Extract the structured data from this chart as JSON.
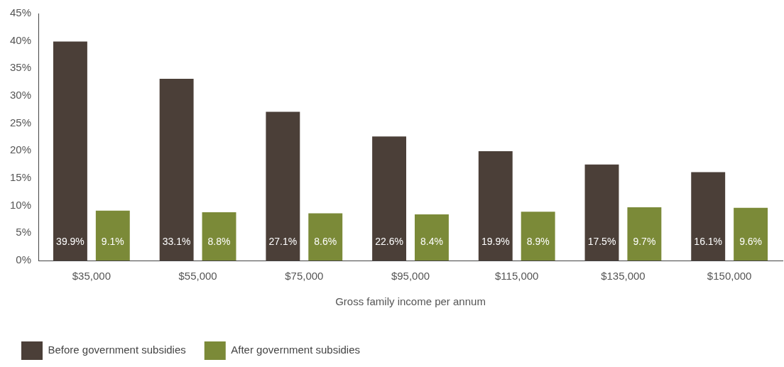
{
  "chart_data": {
    "type": "bar",
    "xlabel": "Gross family income per annum",
    "categories": [
      "$35,000",
      "$55,000",
      "$75,000",
      "$95,000",
      "$115,000",
      "$135,000",
      "$150,000"
    ],
    "series": [
      {
        "name": "Before government subsidies",
        "color": "#4b3f38",
        "values": [
          39.9,
          33.1,
          27.1,
          22.6,
          19.9,
          17.5,
          16.1
        ],
        "value_labels": [
          "39.9%",
          "33.1%",
          "27.1%",
          "22.6%",
          "19.9%",
          "17.5%",
          "16.1%"
        ]
      },
      {
        "name": "After government subsidies",
        "color": "#7b8a38",
        "values": [
          9.1,
          8.8,
          8.6,
          8.4,
          8.9,
          9.7,
          9.6
        ],
        "value_labels": [
          "9.1%",
          "8.8%",
          "8.6%",
          "8.4%",
          "8.9%",
          "9.7%",
          "9.6%"
        ]
      }
    ],
    "ylim": [
      0,
      45
    ],
    "yticks": [
      {
        "value": 0,
        "label": "0%"
      },
      {
        "value": 5,
        "label": "5%"
      },
      {
        "value": 10,
        "label": "10%"
      },
      {
        "value": 15,
        "label": "15%"
      },
      {
        "value": 20,
        "label": "20%"
      },
      {
        "value": 25,
        "label": "25%"
      },
      {
        "value": 30,
        "label": "30%"
      },
      {
        "value": 35,
        "label": "35%"
      },
      {
        "value": 40,
        "label": "40%"
      },
      {
        "value": 45,
        "label": "45%"
      }
    ],
    "grid": false,
    "legend": "bottom left"
  }
}
